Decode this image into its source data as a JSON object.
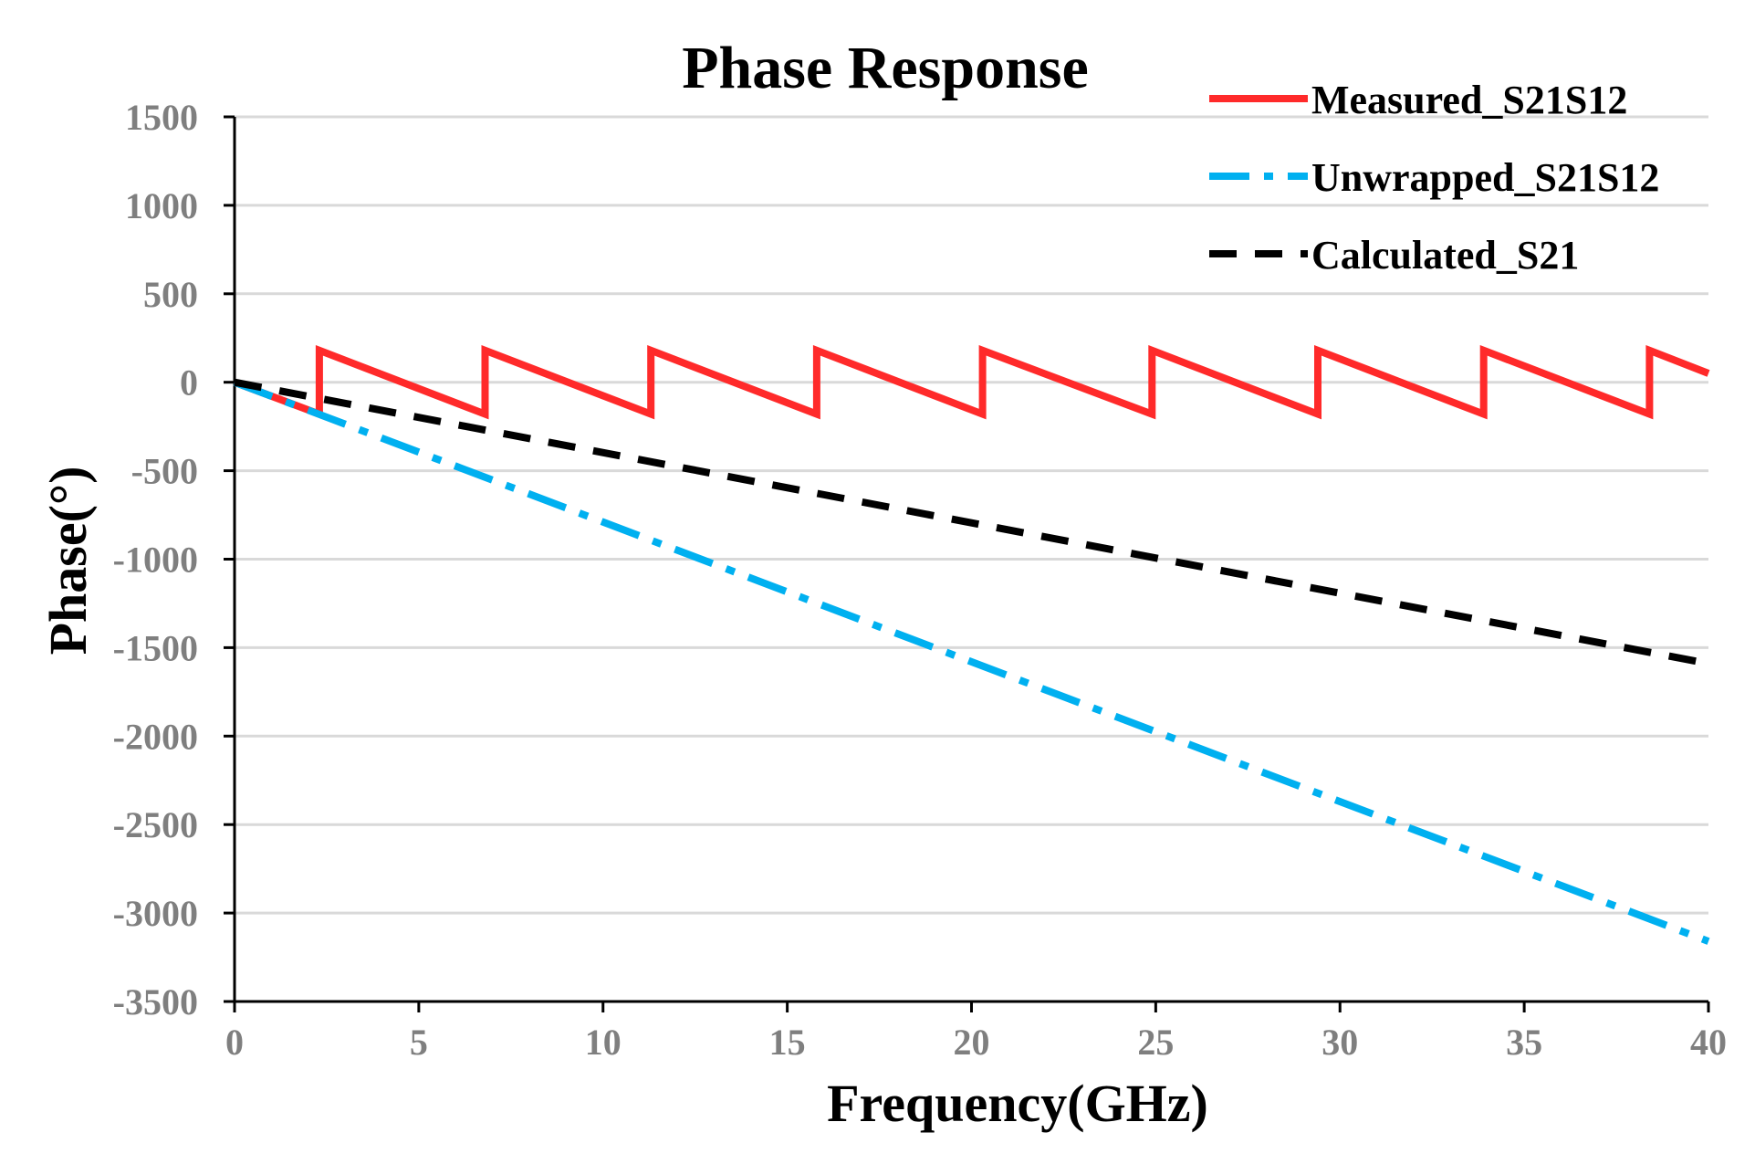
{
  "chart_data": {
    "type": "line",
    "title": "Phase Response",
    "xlabel": "Frequency(GHz)",
    "ylabel": "Phase(°)",
    "xlim": [
      0,
      40
    ],
    "ylim": [
      -3500,
      1500
    ],
    "xticks": [
      0,
      5,
      10,
      15,
      20,
      25,
      30,
      35,
      40
    ],
    "yticks": [
      1500,
      1000,
      500,
      0,
      -500,
      -1000,
      -1500,
      -2000,
      -2500,
      -3000,
      -3500
    ],
    "grid": "horizontal",
    "legend_position": "top-right",
    "series": [
      {
        "name": "Measured_S21S12",
        "color": "#ff2a2a",
        "style": "solid",
        "x": [
          0,
          2.3,
          2.3,
          6.8,
          6.8,
          11.3,
          11.3,
          15.8,
          15.8,
          20.3,
          20.3,
          24.9,
          24.9,
          29.4,
          29.4,
          33.9,
          33.9,
          38.4,
          38.4,
          40
        ],
        "y": [
          0,
          -180,
          180,
          -180,
          180,
          -180,
          180,
          -180,
          180,
          -180,
          180,
          -180,
          180,
          -180,
          180,
          -180,
          180,
          -180,
          180,
          50
        ]
      },
      {
        "name": "Unwrapped_S21S12",
        "color": "#00b0f0",
        "style": "dashdot",
        "x": [
          0,
          40
        ],
        "y": [
          0,
          -3160
        ]
      },
      {
        "name": "Calculated_S21",
        "color": "#000000",
        "style": "dashed",
        "x": [
          0,
          40
        ],
        "y": [
          0,
          -1590
        ]
      }
    ]
  }
}
